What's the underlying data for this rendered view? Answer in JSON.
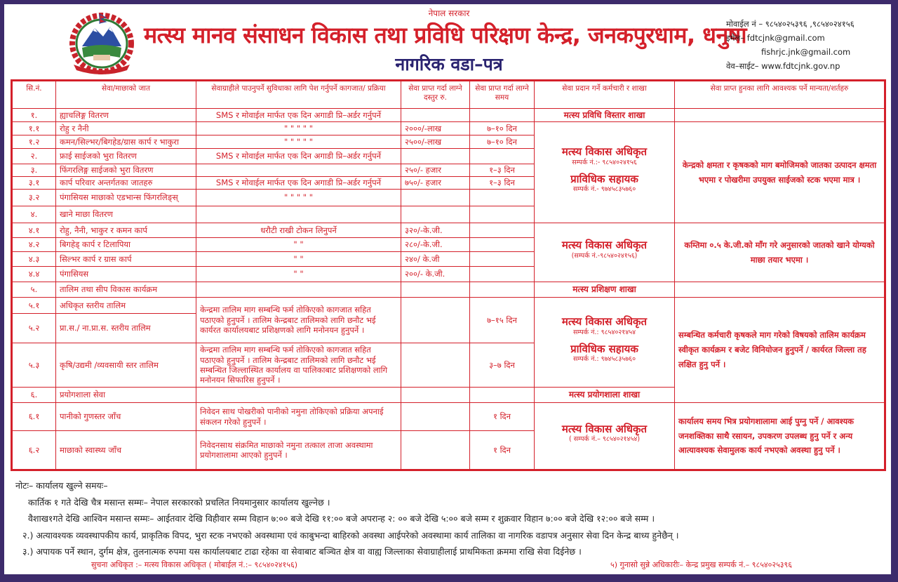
{
  "header": {
    "government": "नेपाल सरकार",
    "title": "मत्स्य मानव संसाधन विकास तथा प्रविधि परिक्षण केन्द्र, जनकपुरधाम, धनुषा",
    "subtitle": "नागरिक वडा–पत्र",
    "mobile": "मोवाईल नं – ९८५४०२५३९६ ,९८५४०२४१५६",
    "email": "इमेल– fdtcjnk@gmail.com",
    "email2": "fishrjc.jnk@gmail.com",
    "website": "वेव–साईट– www.fdtcjnk.gov.np"
  },
  "colors": {
    "red": "#d4202a",
    "navy": "#2a2370",
    "border": "#3d2b6b"
  },
  "table": {
    "headers": [
      "सि.नं.",
      "सेवा/माछाको जात",
      "सेवाग्राहीले पाउनुपर्ने सुविधाका लागि पेश गर्नुपर्ने कागजात/ प्रक्रिया",
      "सेवा प्राप्त गर्दा लाग्ने दस्तुर रु.",
      "सेवा प्राप्त गर्दा लाग्ने समय",
      "सेवा प्रदान गर्ने कर्मचारी र शाखा",
      "सेवा प्राप्त हुनका लागि आवश्यक पर्ने मान्यता/शर्तहरु"
    ],
    "rows": [
      {
        "sn": "१.",
        "item": "ह्याचलिङ्ग वितरण",
        "docs": "SMS र मोवाईल मार्फत एक दिन अगाडी प्रि–अर्डर गर्नुपर्ने",
        "fee": "",
        "time": ""
      },
      {
        "sn": "१.१",
        "item": "रोहु र नैनी",
        "docs": "\"       \"       \"       \"       \"",
        "fee": "२०००/-लाख",
        "time": "७–१० दिन"
      },
      {
        "sn": "१.२",
        "item": "कमन/सिल्भर/बिगहेड/ग्रास कार्प र भाकुरा",
        "docs": "\"       \"       \"       \"       \"",
        "fee": "२५००/-लाख",
        "time": "७–१० दिन"
      },
      {
        "sn": "२.",
        "item": "फ्राई साईजको भुरा वितरण",
        "docs": "SMS र मोवाईल मार्फत एक दिन अगाडी प्रि–अर्डर गर्नुपर्ने",
        "fee": "",
        "time": ""
      },
      {
        "sn": "३.",
        "item": "फिंगरलिङ्ग साईजको भुरा वितरण",
        "docs": "",
        "fee": "२५०/- हजार",
        "time": "१–३ दिन"
      },
      {
        "sn": "३.१",
        "item": "कार्प परिवार अन्तर्गतका जातहरु",
        "docs": "SMS र मोवाईल मार्फत एक दिन अगाडी प्रि–अर्डर गर्नुपर्ने",
        "fee": "७५०/- हजार",
        "time": "१–३ दिन"
      },
      {
        "sn": "३.२",
        "item": "पंगासियस माछाको एडभान्स फिंगरलिङ्स्",
        "docs": "\"       \"       \"       \"       \"",
        "fee": "",
        "time": ""
      },
      {
        "sn": "४.",
        "item": "खाने माछा वितरण",
        "docs": "",
        "fee": "",
        "time": ""
      },
      {
        "sn": "४.१",
        "item": "रोहु, नैनी, भाकुर र कमन कार्प",
        "docs": "धरौटी राखी टोकन लिनुपर्ने",
        "fee": "३२०/-के.जी.",
        "time": ""
      },
      {
        "sn": "४.२",
        "item": "बिगहेड् कार्प र टिलापिया",
        "docs": "\"           \"",
        "fee": "२८०/-के.जी.",
        "time": ""
      },
      {
        "sn": "४.३",
        "item": "सिल्भर कार्प र ग्रास कार्प",
        "docs": "\"           \"",
        "fee": "२४०/ के.जी",
        "time": ""
      },
      {
        "sn": "४.४",
        "item": "पंगासियस",
        "docs": "\"           \"",
        "fee": "२००/- के.जी.",
        "time": ""
      },
      {
        "sn": "५.",
        "item": "तालिम तथा सीप विकास कार्यक्रम",
        "docs": "",
        "fee": "",
        "time": ""
      },
      {
        "sn": "५.१",
        "item": "अधिकृत स्तरीय तालिम",
        "docs": "केन्द्रमा तालिम माग सम्बन्धि फर्म तोकिएको कागजात सहित पठाएको हुनुपर्ने । तालिम केन्द्रबाट तालिमको लागि छनौट भई कार्यरत कार्यालयबाट प्रशिक्षणको लागि मनोनयन हुनुपर्ने ।",
        "fee": "",
        "time": "७–१५ दिन"
      },
      {
        "sn": "५.२",
        "item": "प्रा.स./ ना.प्रा.स. स्तरीय तालिम",
        "docs": "",
        "fee": "",
        "time": ""
      },
      {
        "sn": "५.३",
        "item": "कृषि/उद्यमी /व्यवसायी स्तर तालिम",
        "docs": "केन्द्रमा तालिम माग सम्बन्धि फर्म तोकिएको कागजात सहित पठाएको हुनुपर्ने । तालिम केन्द्रबाट तालिमको लागि छनौट भई सम्बन्धित जिल्लास्थित कार्यालय वा पालिकाबाट प्रशिक्षणको लागि मनोनयन सिफारिस हुनुपर्ने ।",
        "fee": "",
        "time": "३–७ दिन"
      },
      {
        "sn": "६.",
        "item": "प्रयोगशाला सेवा",
        "docs": "",
        "fee": "",
        "time": ""
      },
      {
        "sn": "६.१",
        "item": "पानीको गुणस्तर जाँच",
        "docs": "निवेदन साथ पोखरीको पानीको नमुना तोकिएको प्रक्रिया अपनाई संकलन गरेको हुनुपर्ने ।",
        "fee": "",
        "time": "१ दिन"
      },
      {
        "sn": "६.२",
        "item": "माछाको स्वास्थ्य जाँच",
        "docs": "निवेदनसाथ संक्रमित माछाको नमुना तत्काल ताजा अवस्थामा प्रयोगशालामा आएको हुनुपर्ने  ।",
        "fee": "",
        "time": "१ दिन"
      }
    ],
    "staff": [
      {
        "branch": "मत्स्य प्रविधि विस्तार शाखा"
      },
      {
        "title": "मत्स्य विकास अधिकृत",
        "contact": "सम्पर्क नं.:- ९८५४०२४१५६",
        "title2": "प्राविधिक सहायक",
        "contact2": "सम्पर्क नं.- ९७४५८३५७६०"
      },
      {
        "title": "मत्स्य विकास अधिकृत",
        "contact": "(सम्पर्क नं.-९८५४०२४१५६)"
      },
      {
        "branch": "मत्स्य प्रशिक्षण शाखा"
      },
      {
        "title": "मत्स्य विकास अधिकृत",
        "contact": "सम्पर्क नं.: ९८५४०२१४५४",
        "title2": "प्राविधिक सहायक",
        "contact2": "सम्पर्क नं.: ९७४५८३५७६०"
      },
      {
        "branch": "मत्स्य प्रयोगशाला शाखा"
      },
      {
        "title": "मत्स्य विकास अधिकृत",
        "contact": "( सम्पर्क नं.– ९८५४०२१४५४)"
      }
    ],
    "conditions": [
      "",
      "केन्द्रको क्षमता र कृषकको माग बमोजिमको जातका उत्पादन क्षमता भएमा र पोखरीमा उपयुक्त साईजको स्टक भएमा मात्र ।",
      "कम्तिमा ०.५ के.जी.को माँग गरे अनुसारको जातको खाने योग्यको माछा तयार भएमा ।",
      "",
      "सम्बन्धित कर्मचारी कृषकले माग गरेको विषयको तालिम कार्यक्रम स्वीकृत कार्यक्रम र बजेट विनियोजन हुनुपर्ने / कार्यरत जिल्ला तह लक्षित हुनु पर्ने ।",
      "कार्यालय समय भित्र प्रयोगशालामा आई पुग्नु पर्ने / आवश्यक जनशक्तिका साथै रसायन, उपकरण उपलब्ध हुनु पर्ने र अन्य आत्यावश्यक सेवामुलक कार्य नभएको अवस्था हुनु पर्ने ।"
    ]
  },
  "notes": {
    "heading": "नोटः– कार्यालय खुल्ने समयः–",
    "line1": "कार्तिक १ गते देखि चैत्र मसान्त सम्मः–   नेपाल सरकारको प्रचलित नियमानुसार कार्यालय खुल्नेछ ।",
    "line2": "वैशाख१गते देखि आश्विन मसान्त सम्मः– आईतवार देखि विहीवार सम्म विहान ७:०० बजे देखि ११:०० बजे अपरान्ह २: ०० बजे देखि ५:०० बजे सम्म र शुक्रवार विहान ७:०० बजे देखि १२:०० बजे सम्म ।",
    "line3": "२.) अत्यावश्यक व्यवस्थापकीय कार्य, प्राकृतिक विपद, भुरा स्टक नभएको अवस्थामा एवं काबुभन्दा बाहिरको अवस्था आईपरेको अवस्थामा  कार्य तालिका वा नागरिक वडापत्र अनुसार सेवा दिन केन्द्र बाध्य हुनेछैन् ।",
    "line4": "३.) अपायक पर्ने स्थान, दुर्गम क्षेत्र, तुलनात्मक रुपमा यस कार्यालयबाट टाढा रहेका वा सेवाबाट बञ्चित क्षेत्र वा वाह्य जिल्लाका सेवाग्राहीलाई प्राथमिकता क्रममा राखि सेवा दिईनेछ ।",
    "info_officer": "सुचना अधिकृत :– मत्स्य विकास अधिकृत ( मोबाईल नं.:– ९८५४०२४१५६)",
    "grievance_officer": "५) गुनासो सुन्ने अधिकारीः– केन्द्र प्रमुख सम्पर्क नं.– ९८५४०२५३९६"
  }
}
